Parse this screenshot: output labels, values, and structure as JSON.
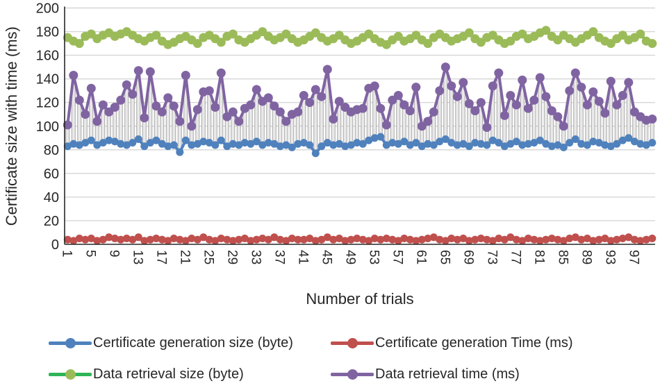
{
  "chart_data": {
    "type": "line",
    "title": "",
    "xlabel": "Number of trials",
    "ylabel": "Certificate size with time (ms)",
    "x_ticks": [
      1,
      5,
      9,
      13,
      17,
      21,
      25,
      29,
      33,
      37,
      41,
      45,
      49,
      53,
      57,
      61,
      65,
      69,
      73,
      77,
      81,
      85,
      89,
      93,
      97
    ],
    "y_ticks": [
      0,
      20,
      40,
      60,
      80,
      100,
      120,
      140,
      160,
      180,
      200
    ],
    "ylim": [
      0,
      200
    ],
    "num_trials": 100,
    "grid": "horizontal",
    "updown_bars": {
      "between": [
        "Certificate generation size (byte)",
        "Data retrieval time (ms)"
      ],
      "fill": "#e9e9e9",
      "stroke": "#a8a8a8"
    },
    "axis_color": "#262626",
    "gridline_color": "#d6d6d6",
    "legend_position": "bottom",
    "series": [
      {
        "name": "Certificate generation size (byte)",
        "line_color": "#4F81BD",
        "marker_color": "#4F81BD",
        "marker_radius": 5.5,
        "values": [
          83,
          85,
          84,
          86,
          88,
          84,
          86,
          88,
          87,
          85,
          84,
          86,
          89,
          83,
          86,
          88,
          85,
          83,
          84,
          78,
          88,
          84,
          85,
          87,
          86,
          84,
          88,
          83,
          85,
          84,
          86,
          85,
          87,
          84,
          86,
          85,
          83,
          84,
          82,
          85,
          86,
          84,
          77,
          83,
          86,
          84,
          85,
          83,
          84,
          86,
          85,
          88,
          90,
          91,
          84,
          86,
          85,
          87,
          84,
          86,
          83,
          85,
          84,
          87,
          89,
          86,
          84,
          85,
          83,
          86,
          85,
          84,
          88,
          86,
          83,
          85,
          87,
          84,
          85,
          86,
          88,
          85,
          83,
          84,
          82,
          86,
          89,
          85,
          84,
          87,
          86,
          84,
          83,
          85,
          88,
          90,
          87,
          85,
          84,
          86
        ]
      },
      {
        "name": "Certificate generation Time (ms)",
        "line_color": "#C0504D",
        "marker_color": "#C0504D",
        "marker_radius": 5.5,
        "values": [
          4,
          3,
          5,
          4,
          5,
          3,
          4,
          6,
          5,
          4,
          5,
          4,
          6,
          3,
          4,
          5,
          4,
          3,
          5,
          4,
          3,
          5,
          4,
          6,
          4,
          3,
          5,
          4,
          3,
          4,
          5,
          3,
          4,
          5,
          4,
          6,
          4,
          3,
          5,
          4,
          4,
          5,
          3,
          4,
          6,
          4,
          5,
          3,
          4,
          5,
          4,
          3,
          5,
          4,
          5,
          4,
          3,
          5,
          4,
          3,
          4,
          5,
          6,
          4,
          3,
          5,
          4,
          5,
          3,
          4,
          5,
          4,
          3,
          5,
          4,
          6,
          4,
          3,
          5,
          4,
          3,
          4,
          5,
          4,
          3,
          5,
          6,
          4,
          5,
          3,
          4,
          5,
          3,
          4,
          5,
          6,
          4,
          3,
          4,
          5
        ]
      },
      {
        "name": "Data retrieval size (byte)",
        "line_color": "#2FB457",
        "marker_color": "#9BBB59",
        "marker_radius": 6.5,
        "values": [
          175,
          172,
          170,
          176,
          178,
          174,
          177,
          179,
          176,
          178,
          180,
          177,
          174,
          172,
          175,
          177,
          172,
          169,
          171,
          174,
          176,
          173,
          170,
          175,
          177,
          174,
          171,
          176,
          178,
          173,
          171,
          174,
          177,
          180,
          176,
          173,
          175,
          178,
          174,
          171,
          173,
          176,
          179,
          175,
          172,
          174,
          177,
          173,
          170,
          172,
          175,
          178,
          174,
          171,
          169,
          173,
          176,
          172,
          174,
          177,
          173,
          170,
          175,
          178,
          175,
          172,
          174,
          176,
          179,
          174,
          171,
          175,
          177,
          173,
          170,
          172,
          176,
          178,
          174,
          176,
          179,
          181,
          176,
          173,
          177,
          174,
          171,
          174,
          177,
          180,
          175,
          172,
          170,
          174,
          177,
          173,
          175,
          178,
          172,
          170
        ]
      },
      {
        "name": "Data retrieval time (ms)",
        "line_color": "#8064A2",
        "marker_color": "#8064A2",
        "marker_radius": 6.5,
        "values": [
          101,
          143,
          122,
          110,
          132,
          104,
          118,
          112,
          116,
          122,
          135,
          127,
          147,
          107,
          146,
          117,
          112,
          124,
          117,
          104,
          143,
          100,
          114,
          129,
          130,
          116,
          145,
          108,
          112,
          104,
          115,
          118,
          131,
          121,
          124,
          117,
          112,
          104,
          110,
          112,
          126,
          120,
          131,
          125,
          148,
          106,
          121,
          116,
          112,
          114,
          115,
          132,
          134,
          115,
          101,
          122,
          126,
          118,
          113,
          133,
          100,
          104,
          112,
          130,
          150,
          134,
          125,
          137,
          119,
          113,
          120,
          99,
          134,
          145,
          109,
          126,
          118,
          139,
          115,
          122,
          141,
          125,
          113,
          108,
          100,
          130,
          145,
          133,
          118,
          129,
          121,
          111,
          138,
          118,
          126,
          137,
          112,
          108,
          105,
          106
        ]
      }
    ]
  },
  "legend": {
    "items": [
      {
        "label": "Certificate generation size (byte)",
        "line_color": "#4F81BD",
        "marker_color": "#4F81BD",
        "row": 1,
        "col": 1
      },
      {
        "label": "Certificate generation Time (ms)",
        "line_color": "#C0504D",
        "marker_color": "#C0504D",
        "row": 1,
        "col": 2
      },
      {
        "label": "Data retrieval size (byte)",
        "line_color": "#2FB457",
        "marker_color": "#9BBB59",
        "row": 2,
        "col": 1
      },
      {
        "label": "Data retrieval time (ms)",
        "line_color": "#8064A2",
        "marker_color": "#8064A2",
        "row": 2,
        "col": 2
      }
    ]
  },
  "axis": {
    "x_title": "Number of trials",
    "y_title": "Certificate size with time (ms)"
  }
}
